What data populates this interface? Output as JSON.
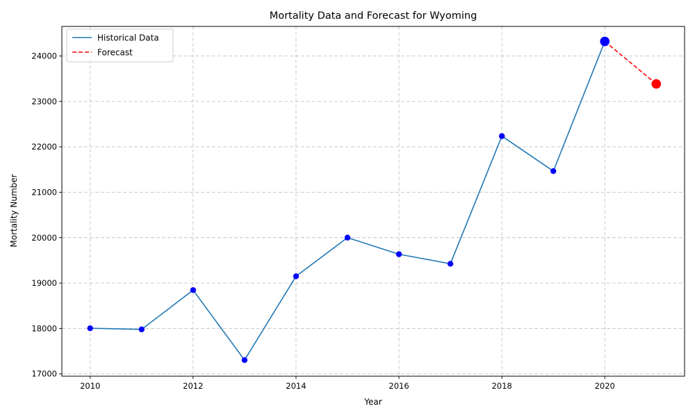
{
  "chart_data": {
    "type": "line",
    "title": "Mortality Data and Forecast for Wyoming",
    "xlabel": "Year",
    "ylabel": "Mortality Number",
    "xlim": [
      2009.45,
      2021.55
    ],
    "ylim": [
      16950,
      24650
    ],
    "x_ticks": [
      2010,
      2012,
      2014,
      2016,
      2018,
      2020
    ],
    "y_ticks": [
      17000,
      18000,
      19000,
      20000,
      21000,
      22000,
      23000,
      24000
    ],
    "grid": true,
    "legend_position": "top-left",
    "series": [
      {
        "name": "Historical Data",
        "style": "solid",
        "line_color": "#1f77b4",
        "marker_color": "#0000ff",
        "x": [
          2010,
          2011,
          2012,
          2013,
          2014,
          2015,
          2016,
          2017,
          2018,
          2019,
          2020
        ],
        "y": [
          18005,
          17980,
          18845,
          17305,
          19150,
          20000,
          19635,
          19425,
          22235,
          21465,
          24320
        ]
      },
      {
        "name": "Forecast",
        "style": "dashed",
        "line_color": "#ff0000",
        "marker_color": "#ff0000",
        "x": [
          2020,
          2021
        ],
        "y": [
          24320,
          23385
        ]
      }
    ],
    "highlighted_points": [
      {
        "x": 2020,
        "y": 24320,
        "color": "#0000ff"
      },
      {
        "x": 2021,
        "y": 23385,
        "color": "#ff0000"
      }
    ]
  }
}
